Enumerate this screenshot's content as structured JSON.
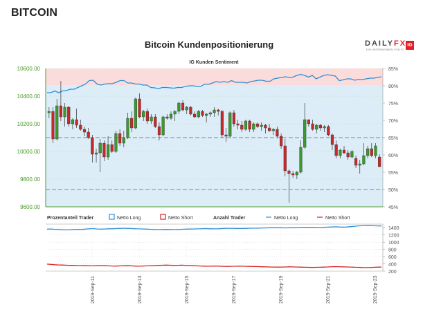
{
  "page": {
    "heading": "BITCOIN"
  },
  "logo": {
    "brand_a": "DAILY",
    "brand_b": "FX",
    "badge": "IG",
    "sub": "EIN UNTERNEHMEN VON IG"
  },
  "chart_data": [
    {
      "type": "candlestick",
      "title": "Bitcoin Kundenpositionierung",
      "subtitle": "IG Kunden Sentiment",
      "ylim": [
        9600,
        10600
      ],
      "y_ticks": [
        "10600.00",
        "10400.00",
        "10200.00",
        "10000.00",
        "9800.00",
        "9600.00"
      ],
      "right_ylim": [
        45,
        85
      ],
      "right_ticks": [
        "85%",
        "80%",
        "75%",
        "70%",
        "65%",
        "60%",
        "55%",
        "50%",
        "45%"
      ],
      "net_long_pct": [
        78,
        78,
        78.5,
        78,
        78.5,
        78.6,
        79,
        79,
        79.5,
        80,
        80.5,
        81.5,
        81.6,
        80.5,
        80.2,
        80.5,
        80.6,
        80.6,
        81,
        81.5,
        81.5,
        80.8,
        80.8,
        80.5,
        80.5,
        80.2,
        80.2,
        79.5,
        79.4,
        79.2,
        79.5,
        79.5,
        79.4,
        79.3,
        79.5,
        79.5,
        79.8,
        80,
        80,
        79.8,
        79.8,
        80.5,
        80.4,
        80.8,
        81.2,
        81,
        81.2,
        81,
        81.5,
        81,
        81,
        81,
        80.8,
        81.2,
        81.4,
        81.6,
        81.6,
        81.3,
        81.3,
        82,
        82.2,
        82.4,
        82.6,
        82.4,
        82.5,
        83,
        83.3,
        83,
        82.5,
        83,
        82,
        82.5,
        83,
        83.2,
        83,
        82.8,
        81.5,
        81.7,
        82,
        82,
        81.6,
        81.8,
        81.8,
        82,
        82.2,
        82.2,
        82.4,
        82.6
      ],
      "candles": [
        [
          10280,
          10320,
          10240,
          10290
        ],
        [
          10290,
          10320,
          10060,
          10090
        ],
        [
          10090,
          10380,
          10080,
          10330
        ],
        [
          10330,
          10510,
          10220,
          10250
        ],
        [
          10250,
          10350,
          10180,
          10320
        ],
        [
          10320,
          10330,
          10180,
          10200
        ],
        [
          10200,
          10240,
          10160,
          10230
        ],
        [
          10230,
          10310,
          10170,
          10190
        ],
        [
          10190,
          10230,
          10150,
          10160
        ],
        [
          10160,
          10180,
          10110,
          10140
        ],
        [
          10140,
          10170,
          10090,
          10100
        ],
        [
          10100,
          10120,
          9920,
          9980
        ],
        [
          9980,
          10020,
          9920,
          9990
        ],
        [
          9990,
          10090,
          9850,
          10060
        ],
        [
          10060,
          10080,
          9930,
          9960
        ],
        [
          9960,
          10110,
          9940,
          10050
        ],
        [
          10050,
          10080,
          9990,
          10000
        ],
        [
          10000,
          10150,
          9990,
          10130
        ],
        [
          10130,
          10160,
          10040,
          10060
        ],
        [
          10060,
          10150,
          10030,
          10100
        ],
        [
          10100,
          10280,
          10090,
          10240
        ],
        [
          10240,
          10290,
          10140,
          10170
        ],
        [
          10170,
          10390,
          10160,
          10380
        ],
        [
          10380,
          10420,
          10240,
          10250
        ],
        [
          10250,
          10300,
          10220,
          10290
        ],
        [
          10290,
          10310,
          10200,
          10220
        ],
        [
          10220,
          10270,
          10200,
          10250
        ],
        [
          10250,
          10270,
          10170,
          10180
        ],
        [
          10180,
          10210,
          10080,
          10120
        ],
        [
          10120,
          10260,
          10110,
          10250
        ],
        [
          10250,
          10270,
          10230,
          10240
        ],
        [
          10240,
          10290,
          10230,
          10270
        ],
        [
          10270,
          10300,
          10220,
          10290
        ],
        [
          10290,
          10360,
          10270,
          10350
        ],
        [
          10350,
          10370,
          10290,
          10300
        ],
        [
          10300,
          10330,
          10270,
          10320
        ],
        [
          10320,
          10330,
          10260,
          10270
        ],
        [
          10270,
          10290,
          10240,
          10250
        ],
        [
          10250,
          10300,
          10240,
          10290
        ],
        [
          10290,
          10300,
          10250,
          10260
        ],
        [
          10260,
          10280,
          10210,
          10270
        ],
        [
          10270,
          10290,
          10250,
          10280
        ],
        [
          10280,
          10320,
          10250,
          10300
        ],
        [
          10300,
          10310,
          10260,
          10290
        ],
        [
          10290,
          10300,
          10100,
          10120
        ],
        [
          10120,
          10170,
          10070,
          10110
        ],
        [
          10110,
          10290,
          10100,
          10280
        ],
        [
          10280,
          10300,
          10180,
          10200
        ],
        [
          10200,
          10230,
          10160,
          10190
        ],
        [
          10190,
          10220,
          10140,
          10160
        ],
        [
          10160,
          10230,
          10150,
          10220
        ],
        [
          10220,
          10230,
          10140,
          10160
        ],
        [
          10160,
          10210,
          10140,
          10200
        ],
        [
          10200,
          10210,
          10170,
          10180
        ],
        [
          10180,
          10210,
          10150,
          10190
        ],
        [
          10190,
          10200,
          10130,
          10170
        ],
        [
          10170,
          10200,
          10140,
          10150
        ],
        [
          10150,
          10170,
          10120,
          10160
        ],
        [
          10160,
          10180,
          10100,
          10110
        ],
        [
          10110,
          10130,
          10020,
          10040
        ],
        [
          10040,
          10090,
          9820,
          9860
        ],
        [
          9860,
          9870,
          9630,
          9840
        ],
        [
          9840,
          9860,
          9810,
          9830
        ],
        [
          9830,
          9860,
          9800,
          9850
        ],
        [
          9850,
          10080,
          9840,
          10030
        ],
        [
          10030,
          10350,
          10020,
          10230
        ],
        [
          10230,
          10230,
          10180,
          10200
        ],
        [
          10200,
          10230,
          10150,
          10160
        ],
        [
          10160,
          10200,
          10130,
          10190
        ],
        [
          10190,
          10200,
          10150,
          10170
        ],
        [
          10170,
          10190,
          10140,
          10180
        ],
        [
          10180,
          10190,
          10110,
          10120
        ],
        [
          10120,
          10130,
          10010,
          10050
        ],
        [
          10050,
          10080,
          9950,
          9970
        ],
        [
          9970,
          10020,
          9950,
          10010
        ],
        [
          10010,
          10040,
          9980,
          9990
        ],
        [
          9990,
          10010,
          9940,
          9960
        ],
        [
          9960,
          10010,
          9950,
          10000
        ],
        [
          9950,
          9970,
          9880,
          9900
        ],
        [
          9900,
          9940,
          9840,
          9910
        ],
        [
          9910,
          10060,
          9900,
          9970
        ],
        [
          9970,
          10040,
          9950,
          10020
        ],
        [
          10020,
          10060,
          9960,
          9970
        ],
        [
          9970,
          10060,
          9950,
          10040
        ],
        [
          9960,
          9980,
          9890,
          9890
        ]
      ],
      "series": [
        {
          "name": "Netto Long",
          "color": "#2a8fd6"
        },
        {
          "name": "Netto Short",
          "color": "#d62020"
        }
      ]
    },
    {
      "type": "line",
      "legend_left_title": "Prozentanteil Trader",
      "legend_right_title": "Anzahl Trader",
      "ylim": [
        200,
        1500
      ],
      "y_ticks": [
        "1400",
        "1200",
        "1000",
        "800",
        "600",
        "400",
        "200"
      ],
      "x_ticks": [
        "2019-Sep-11",
        "2019-Sep-13",
        "2019-Sep-15",
        "2019-Sep-17",
        "2019-Sep-19",
        "2019-Sep-21",
        "2019-Sep-23"
      ],
      "series": [
        {
          "name": "Netto Long",
          "color": "#2a8fd6",
          "values": [
            1360,
            1365,
            1355,
            1350,
            1345,
            1340,
            1345,
            1350,
            1355,
            1350,
            1360,
            1370,
            1375,
            1365,
            1360,
            1365,
            1370,
            1370,
            1375,
            1380,
            1385,
            1380,
            1375,
            1370,
            1368,
            1365,
            1360,
            1355,
            1350,
            1348,
            1350,
            1352,
            1350,
            1348,
            1350,
            1355,
            1360,
            1362,
            1365,
            1368,
            1370,
            1375,
            1372,
            1370,
            1368,
            1372,
            1380,
            1385,
            1382,
            1380,
            1378,
            1380,
            1382,
            1385,
            1388,
            1390,
            1392,
            1395,
            1398,
            1400,
            1402,
            1398,
            1395,
            1398,
            1400,
            1405,
            1408,
            1410,
            1412,
            1410,
            1408,
            1405,
            1410,
            1415,
            1420,
            1425,
            1420,
            1418,
            1420,
            1430,
            1440,
            1450,
            1455,
            1460,
            1458,
            1455,
            1450,
            1448
          ]
        },
        {
          "name": "Netto Short",
          "color": "#d62020",
          "values": [
            395,
            385,
            375,
            370,
            368,
            362,
            358,
            360,
            355,
            352,
            350,
            348,
            345,
            350,
            355,
            350,
            345,
            342,
            340,
            345,
            348,
            350,
            345,
            340,
            335,
            342,
            345,
            348,
            352,
            358,
            362,
            366,
            362,
            358,
            360,
            364,
            360,
            355,
            350,
            345,
            342,
            338,
            335,
            340,
            342,
            338,
            332,
            330,
            334,
            336,
            338,
            335,
            332,
            330,
            328,
            325,
            320,
            318,
            315,
            312,
            310,
            312,
            315,
            318,
            316,
            313,
            310,
            308,
            305,
            302,
            305,
            308,
            310,
            315,
            322,
            325,
            322,
            318,
            315,
            312,
            308,
            305,
            300,
            298,
            300,
            305,
            310,
            310
          ]
        }
      ]
    }
  ]
}
